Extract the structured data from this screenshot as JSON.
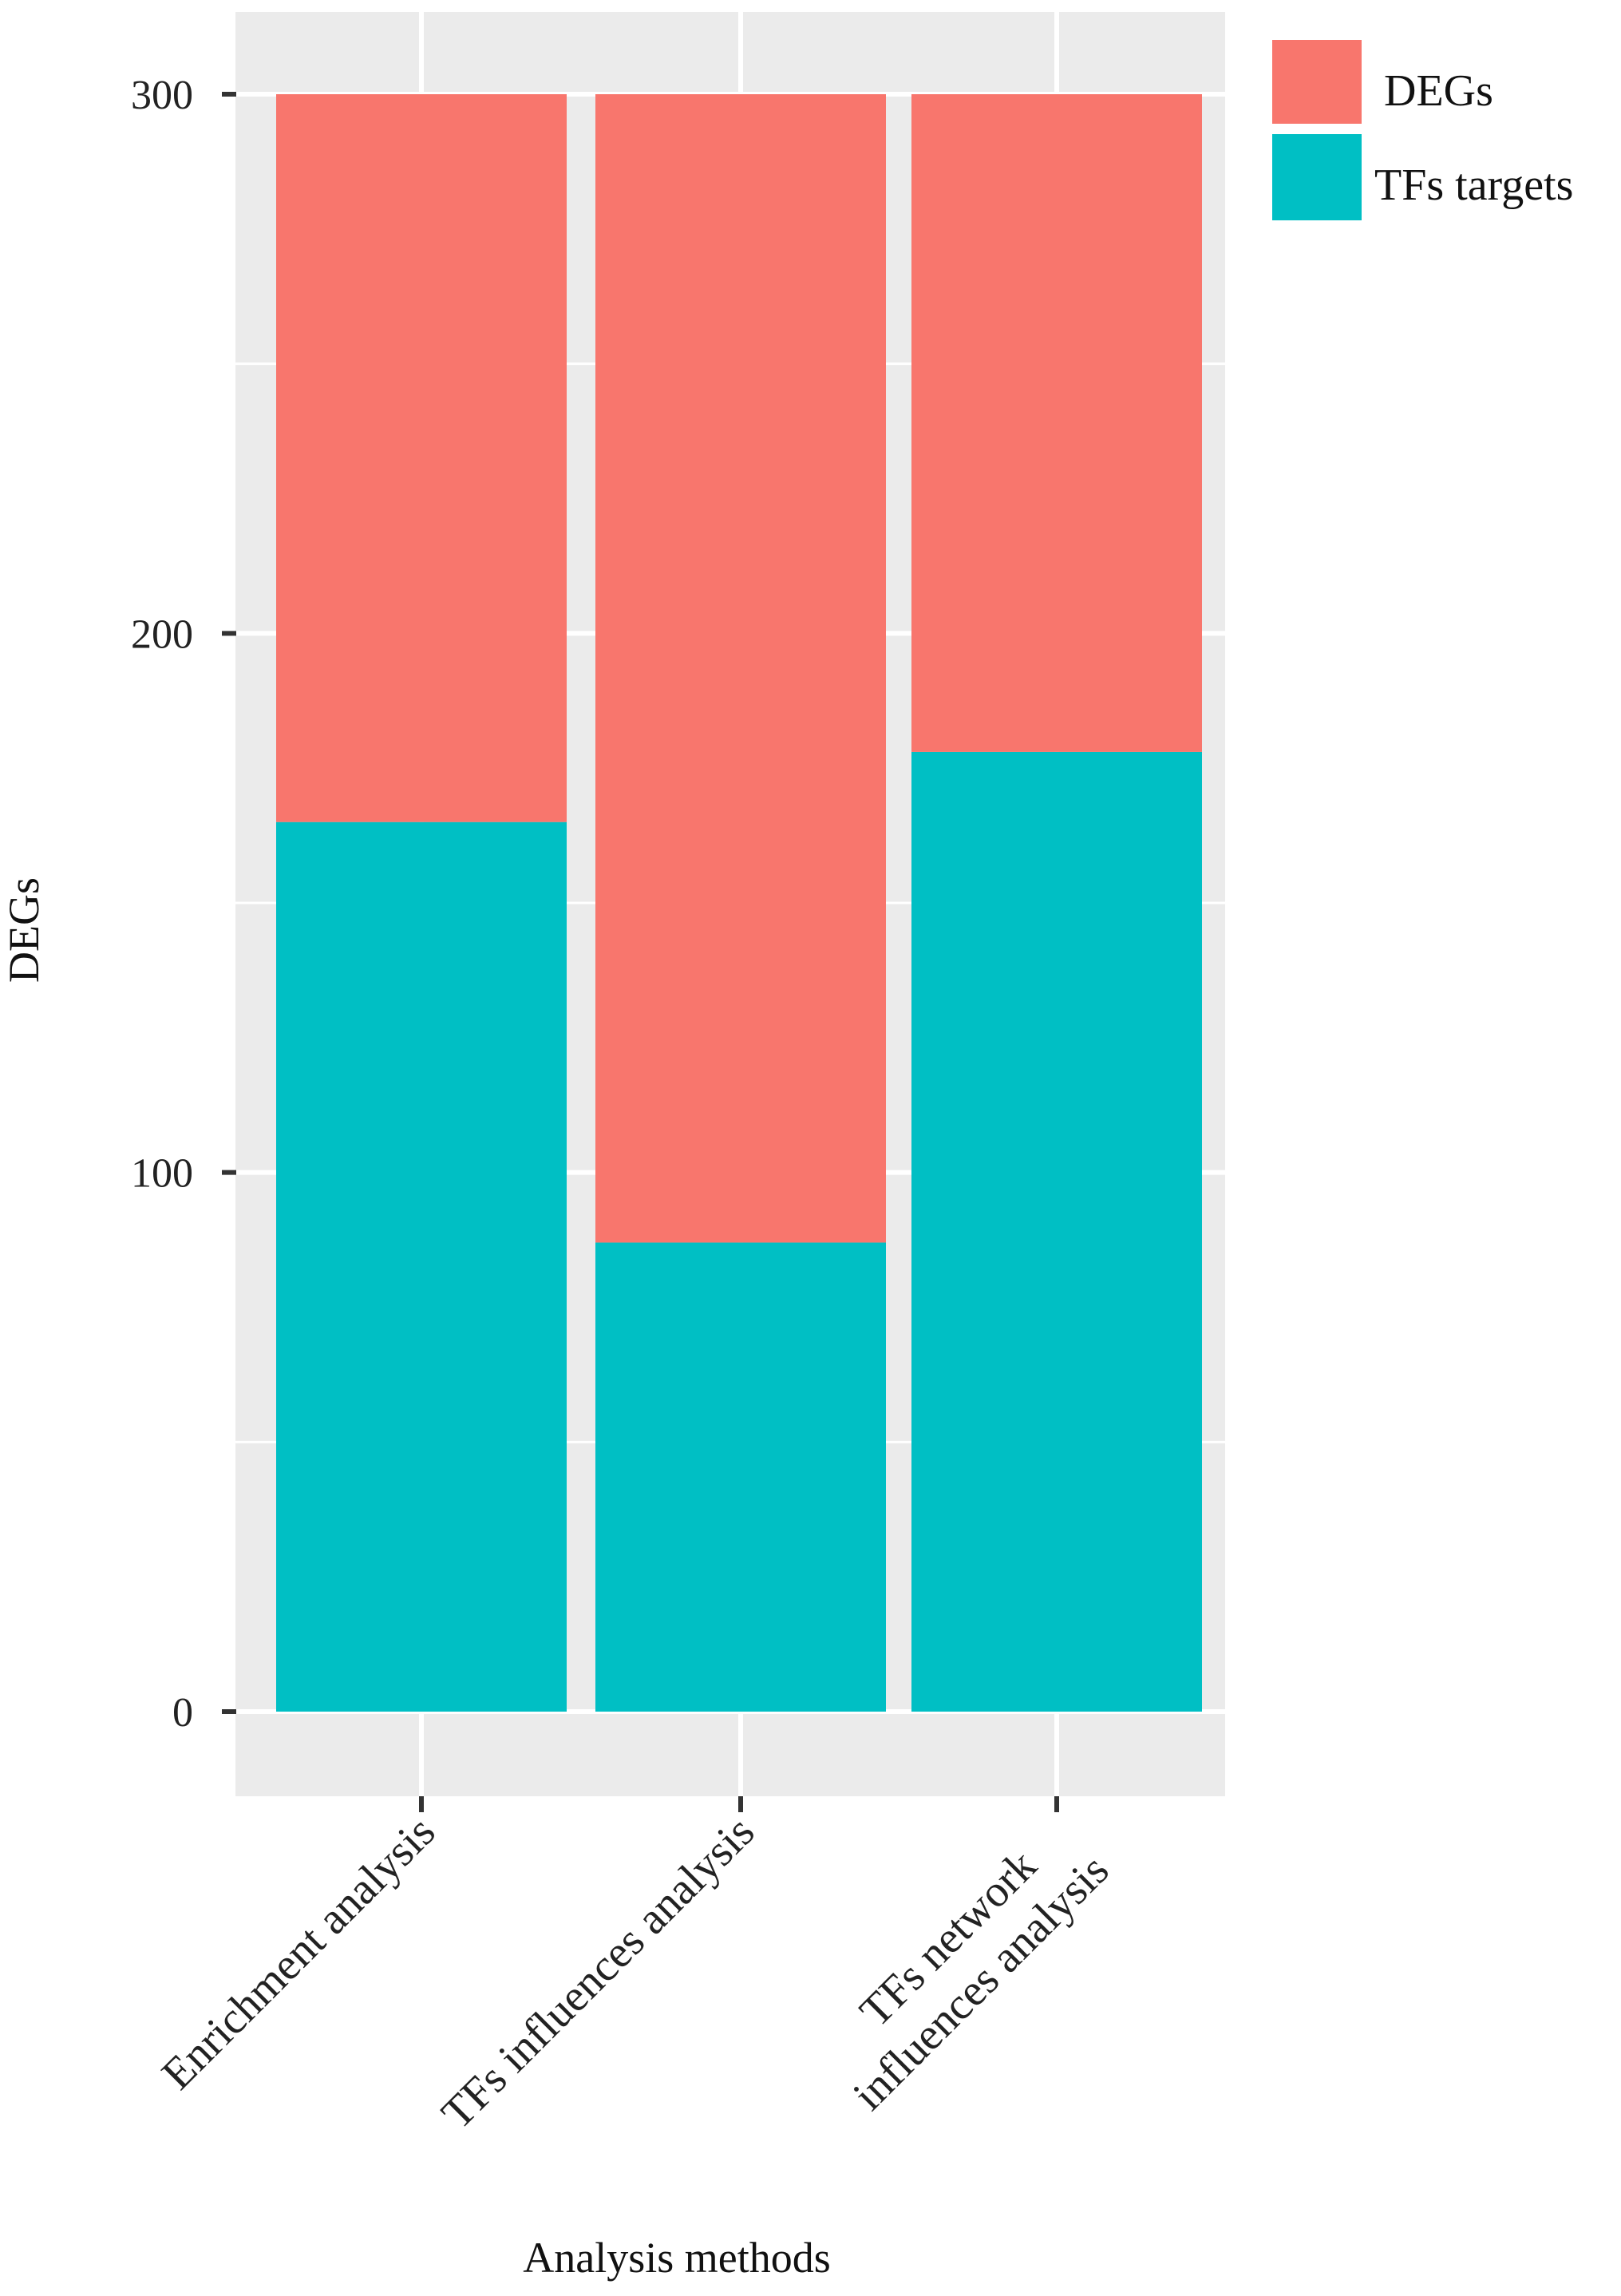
{
  "chart_data": {
    "type": "bar",
    "stacked": true,
    "categories": [
      [
        "Enrichment analysis"
      ],
      [
        "TFs influences analysis"
      ],
      [
        "TFs network",
        "influences analysis"
      ]
    ],
    "series": [
      {
        "name": "TFs targets",
        "color": "#00BFC4",
        "values": [
          165,
          87,
          178
        ]
      },
      {
        "name": "DEGs",
        "color": "#F8766D",
        "values": [
          135,
          213,
          122
        ]
      }
    ],
    "totals": [
      300,
      300,
      300
    ],
    "yticks": [
      0,
      100,
      200,
      300
    ],
    "ylim": [
      -15,
      315
    ],
    "xlabel": "Analysis methods",
    "ylabel": "DEGs",
    "legend": {
      "placement": "top-right",
      "entries": [
        {
          "label": "DEGs",
          "color": "#F8766D"
        },
        {
          "label": "TFs targets",
          "color": "#00BFC4"
        }
      ]
    },
    "grid": true,
    "panel_background": "#EBEBEB",
    "grid_color": "#FFFFFF"
  }
}
